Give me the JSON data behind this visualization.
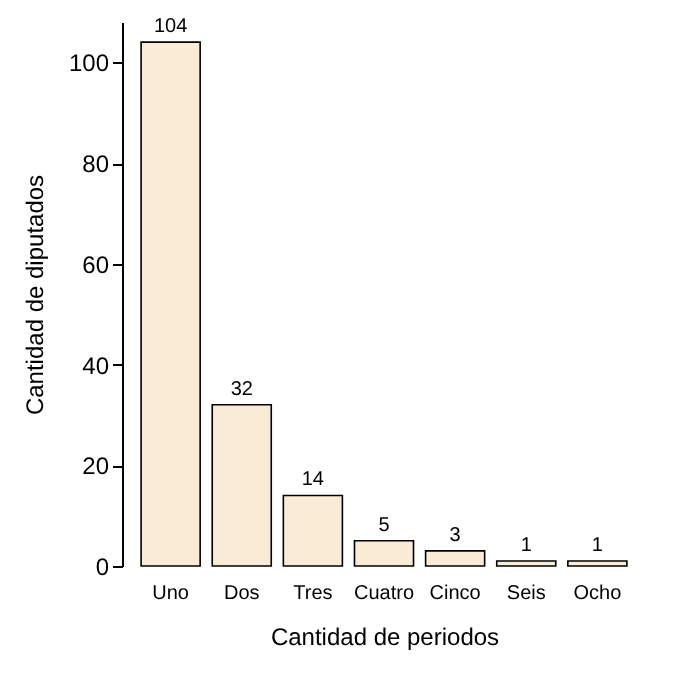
{
  "chart_data": {
    "type": "bar",
    "xlabel": "Cantidad de periodos",
    "ylabel": "Cantidad de diputados",
    "categories": [
      "Uno",
      "Dos",
      "Tres",
      "Cuatro",
      "Cinco",
      "Seis",
      "Ocho"
    ],
    "values": [
      104,
      32,
      14,
      5,
      3,
      1,
      1
    ],
    "color": "#faebd7",
    "ylim": [
      0,
      108
    ],
    "yticks": [
      0,
      20,
      40,
      60,
      80,
      100
    ],
    "grid": false,
    "data_labels": true
  }
}
